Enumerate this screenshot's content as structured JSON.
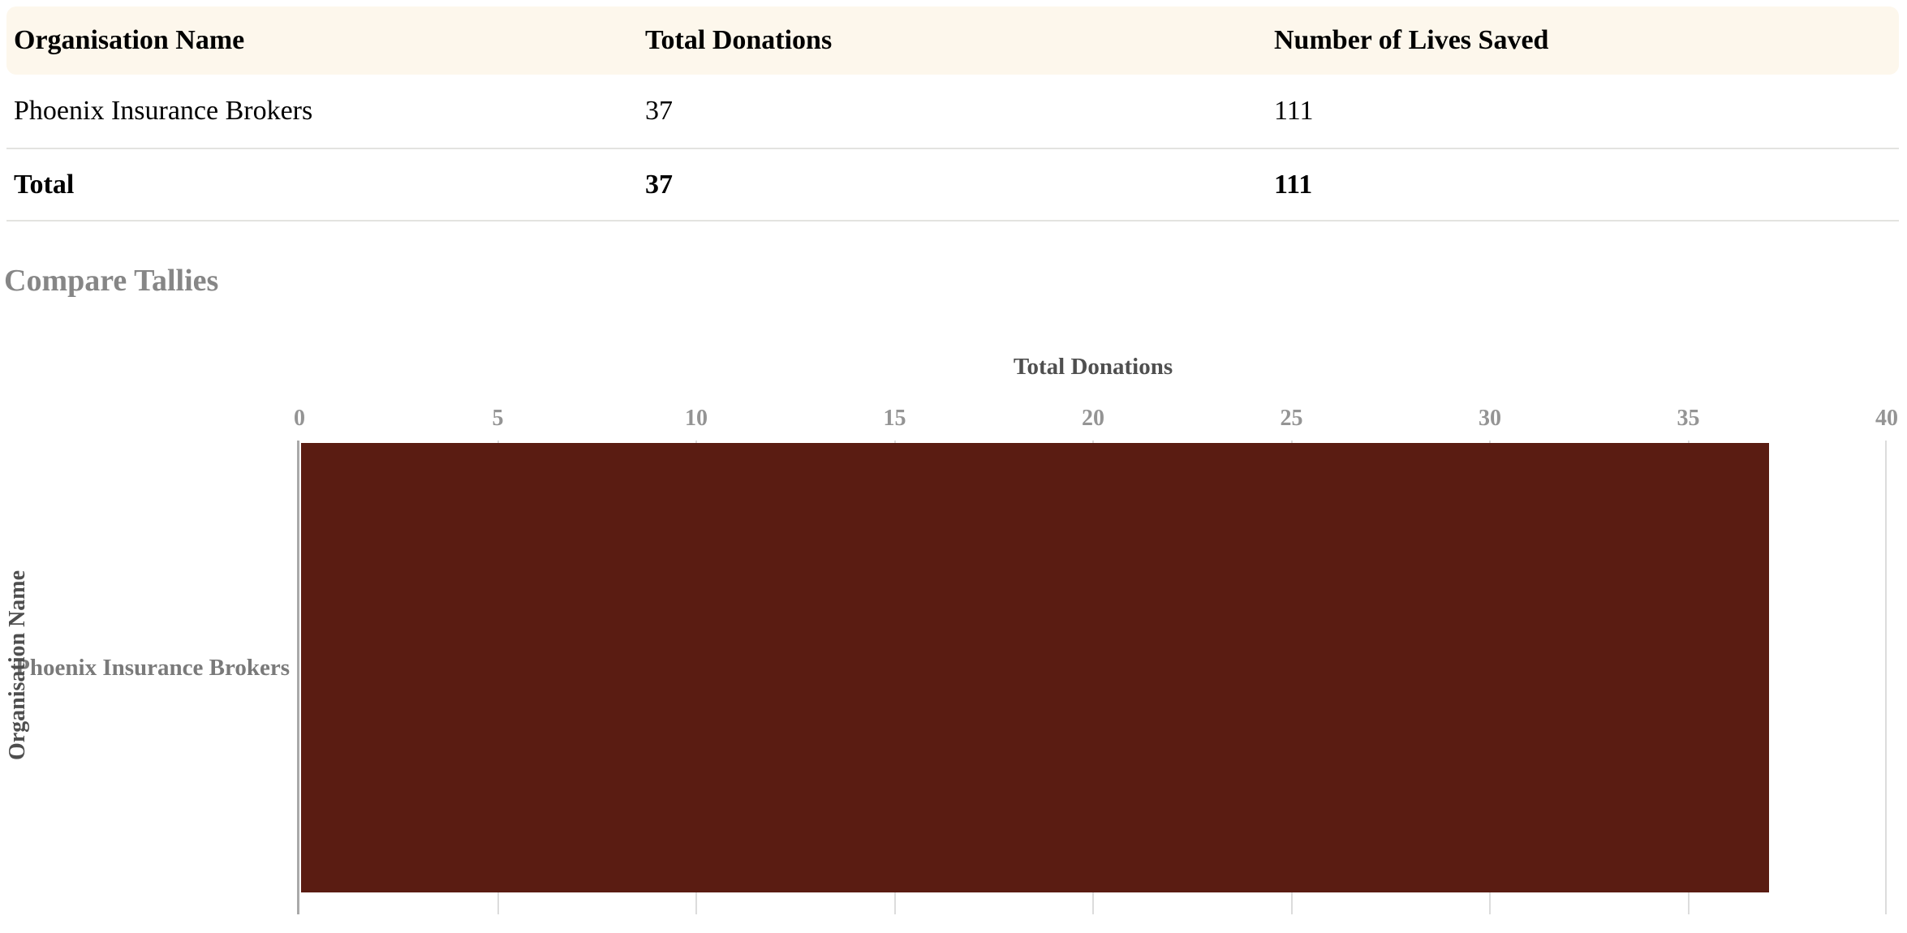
{
  "table": {
    "columns": [
      {
        "label": "Organisation Name"
      },
      {
        "label": "Total Donations"
      },
      {
        "label": "Number of Lives Saved"
      }
    ],
    "rows": [
      {
        "organisation": "Phoenix Insurance Brokers",
        "total_donations": "37",
        "lives_saved": "111"
      }
    ],
    "total_row": {
      "label": "Total",
      "total_donations": "37",
      "lives_saved": "111"
    }
  },
  "section": {
    "heading": "Compare Tallies"
  },
  "chart_data": {
    "type": "bar",
    "orientation": "horizontal",
    "title": "Total Donations",
    "xlabel": "Total Donations",
    "ylabel": "Organisation Name",
    "categories": [
      "Phoenix Insurance Brokers"
    ],
    "values": [
      37
    ],
    "xlim": [
      0,
      40
    ],
    "xticks": [
      0,
      5,
      10,
      15,
      20,
      25,
      30,
      35,
      40
    ],
    "grid": "vertical-gridlines-at-xticks",
    "legend_position": "none"
  },
  "colors": {
    "header_background": "#fdf7ec",
    "row_border": "#e3e3e0",
    "bar": "#5a1c12",
    "axis_line": "#a9a9a9",
    "gridline": "#dcdcdc",
    "heading_gray": "#868686",
    "chart_title_gray": "#4f4f4f",
    "tick_label_gray": "#949494",
    "category_label_gray": "#7a7a7a",
    "y_axis_label_gray": "#4e4e4e"
  }
}
